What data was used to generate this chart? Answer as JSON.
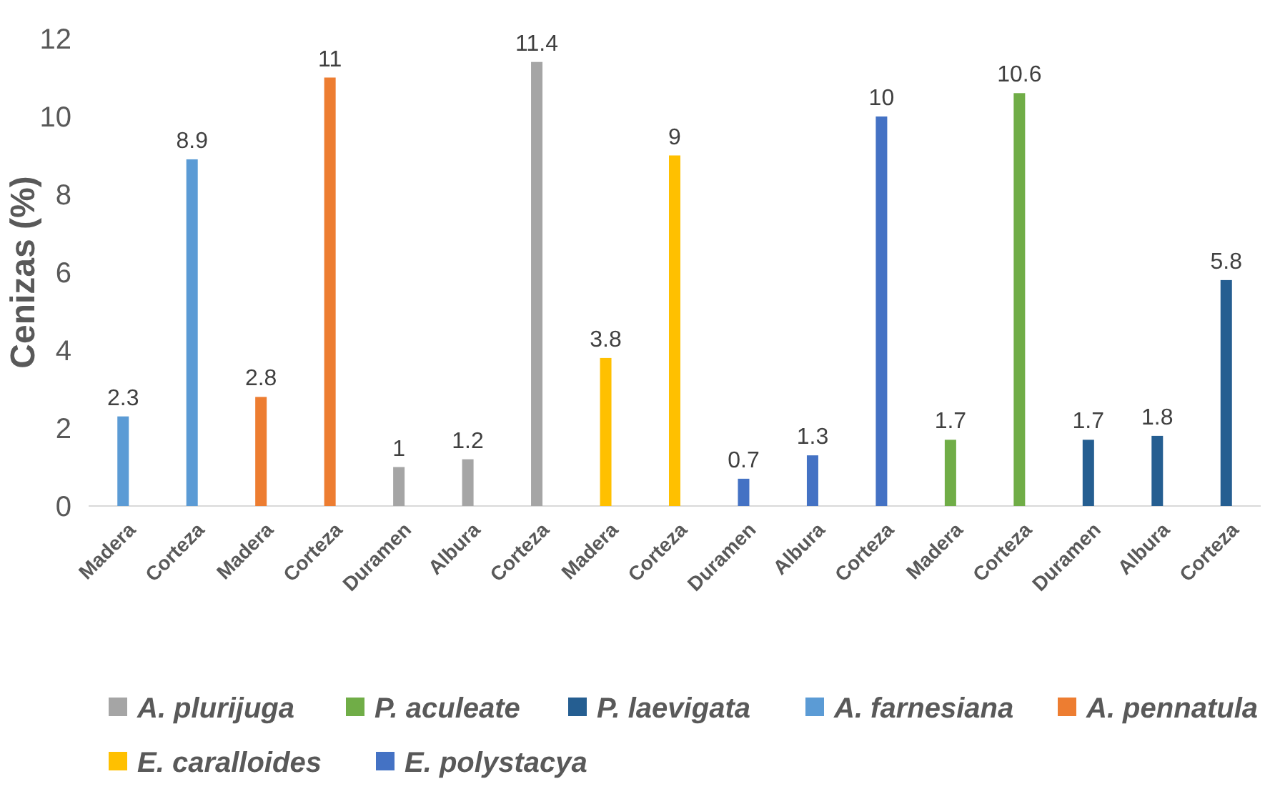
{
  "chart_data": {
    "type": "bar",
    "ylabel": "Cenizas (%)",
    "categories": [
      "Madera",
      "Corteza",
      "Madera",
      "Corteza",
      "Duramen",
      "Albura",
      "Corteza",
      "Madera",
      "Corteza",
      "Duramen",
      "Albura",
      "Corteza",
      "Madera",
      "Corteza",
      "Duramen",
      "Albura",
      "Corteza"
    ],
    "series": [
      {
        "name": "A. plurijuga",
        "color": "#a5a5a5",
        "values": [
          null,
          null,
          null,
          null,
          1,
          1.2,
          11.4,
          null,
          null,
          null,
          null,
          null,
          null,
          null,
          null,
          null,
          null
        ]
      },
      {
        "name": "P. aculeate",
        "color": "#70ad47",
        "values": [
          null,
          null,
          null,
          null,
          null,
          null,
          null,
          null,
          null,
          null,
          null,
          null,
          1.7,
          10.6,
          null,
          null,
          null
        ]
      },
      {
        "name": "P. laevigata",
        "color": "#255e91",
        "values": [
          null,
          null,
          null,
          null,
          null,
          null,
          null,
          null,
          null,
          null,
          null,
          null,
          null,
          null,
          1.7,
          1.8,
          5.8
        ]
      },
      {
        "name": "A. farnesiana",
        "color": "#5b9bd5",
        "values": [
          2.3,
          8.9,
          null,
          null,
          null,
          null,
          null,
          null,
          null,
          null,
          null,
          null,
          null,
          null,
          null,
          null,
          null
        ]
      },
      {
        "name": "A. pennatula",
        "color": "#ed7d31",
        "values": [
          null,
          null,
          2.8,
          11,
          null,
          null,
          null,
          null,
          null,
          null,
          null,
          null,
          null,
          null,
          null,
          null,
          null
        ]
      },
      {
        "name": "E. caralloides",
        "color": "#ffc000",
        "values": [
          null,
          null,
          null,
          null,
          null,
          null,
          null,
          3.8,
          9,
          null,
          null,
          null,
          null,
          null,
          null,
          null,
          null
        ]
      },
      {
        "name": "E. polystacya",
        "color": "#4472c4",
        "values": [
          null,
          null,
          null,
          null,
          null,
          null,
          null,
          null,
          null,
          0.7,
          1.3,
          10,
          null,
          null,
          null,
          null,
          null
        ]
      }
    ],
    "ylim": [
      0,
      12
    ],
    "yticks": [
      0,
      2,
      4,
      6,
      8,
      10,
      12
    ],
    "data_labels": true,
    "legend": "bottom"
  }
}
